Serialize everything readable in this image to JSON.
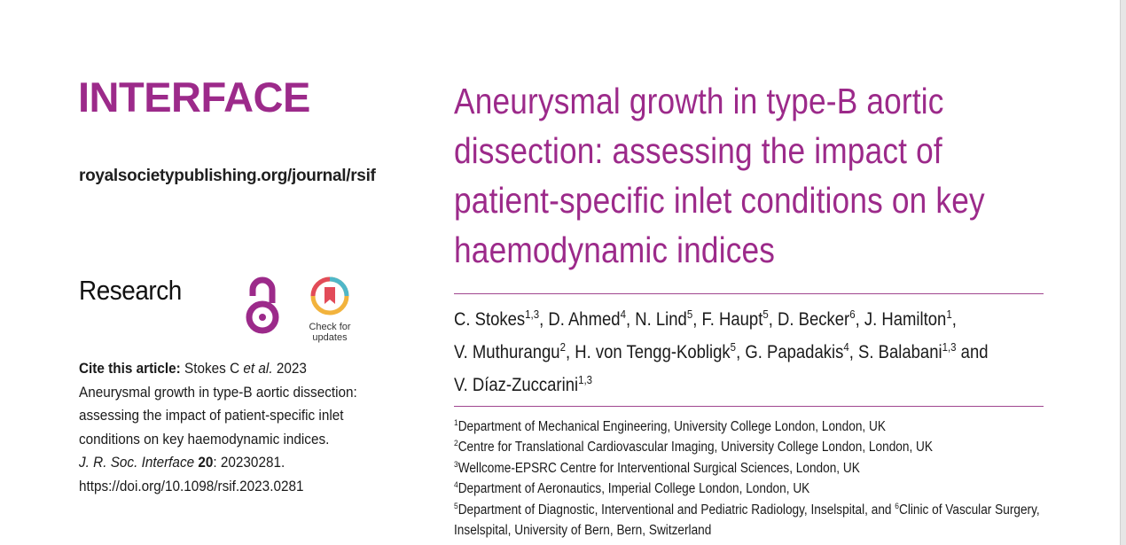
{
  "journal": {
    "name": "INTERFACE",
    "url": "royalsocietypublishing.org/journal/rsif",
    "brand_color": "#9c2a8a"
  },
  "section": "Research",
  "check_updates_label_1": "Check for",
  "check_updates_label_2": "updates",
  "cite": {
    "label": "Cite this article:",
    "authors_pre": "Stokes C",
    "etal": "et al.",
    "year": "2023",
    "lines": [
      "Aneurysmal growth in type-B aortic dissection:",
      "assessing the impact of patient-specific inlet",
      "conditions on key haemodynamic indices."
    ],
    "journal_abbrev": "J. R. Soc. Interface",
    "volume": "20",
    "article_id": ": 20230281.",
    "doi": "https://doi.org/10.1098/rsif.2023.0281"
  },
  "title_lines": [
    "Aneurysmal growth in type-B aortic",
    "dissection: assessing the impact of",
    "patient-specific inlet conditions on key",
    "haemodynamic indices"
  ],
  "authors": [
    {
      "name": "C. Stokes",
      "sup": "1,3"
    },
    {
      "name": "D. Ahmed",
      "sup": "4"
    },
    {
      "name": "N. Lind",
      "sup": "5"
    },
    {
      "name": "F. Haupt",
      "sup": "5"
    },
    {
      "name": "D. Becker",
      "sup": "6"
    },
    {
      "name": "J. Hamilton",
      "sup": "1"
    },
    {
      "name": "V. Muthurangu",
      "sup": "2"
    },
    {
      "name": "H. von Tengg-Kobligk",
      "sup": "5"
    },
    {
      "name": "G. Papadakis",
      "sup": "4"
    },
    {
      "name": "S. Balabani",
      "sup": "1,3"
    },
    {
      "name": "V. Díaz-Zuccarini",
      "sup": "1,3"
    }
  ],
  "author_conj": "and",
  "affiliations": [
    {
      "sup": "1",
      "text": "Department of Mechanical Engineering, University College London, London, UK"
    },
    {
      "sup": "2",
      "text": "Centre for Translational Cardiovascular Imaging, University College London, London, UK"
    },
    {
      "sup": "3",
      "text": "Wellcome-EPSRC Centre for Interventional Surgical Sciences, London, UK"
    },
    {
      "sup": "4",
      "text": "Department of Aeronautics, Imperial College London, London, UK"
    },
    {
      "sup": "5",
      "text": "Department of Diagnostic, Interventional and Pediatric Radiology, Inselspital, and "
    },
    {
      "sup": "6",
      "text": "Clinic of Vascular Surgery,"
    },
    {
      "sup": "",
      "text": "Inselspital, University of Bern, Bern, Switzerland"
    }
  ]
}
